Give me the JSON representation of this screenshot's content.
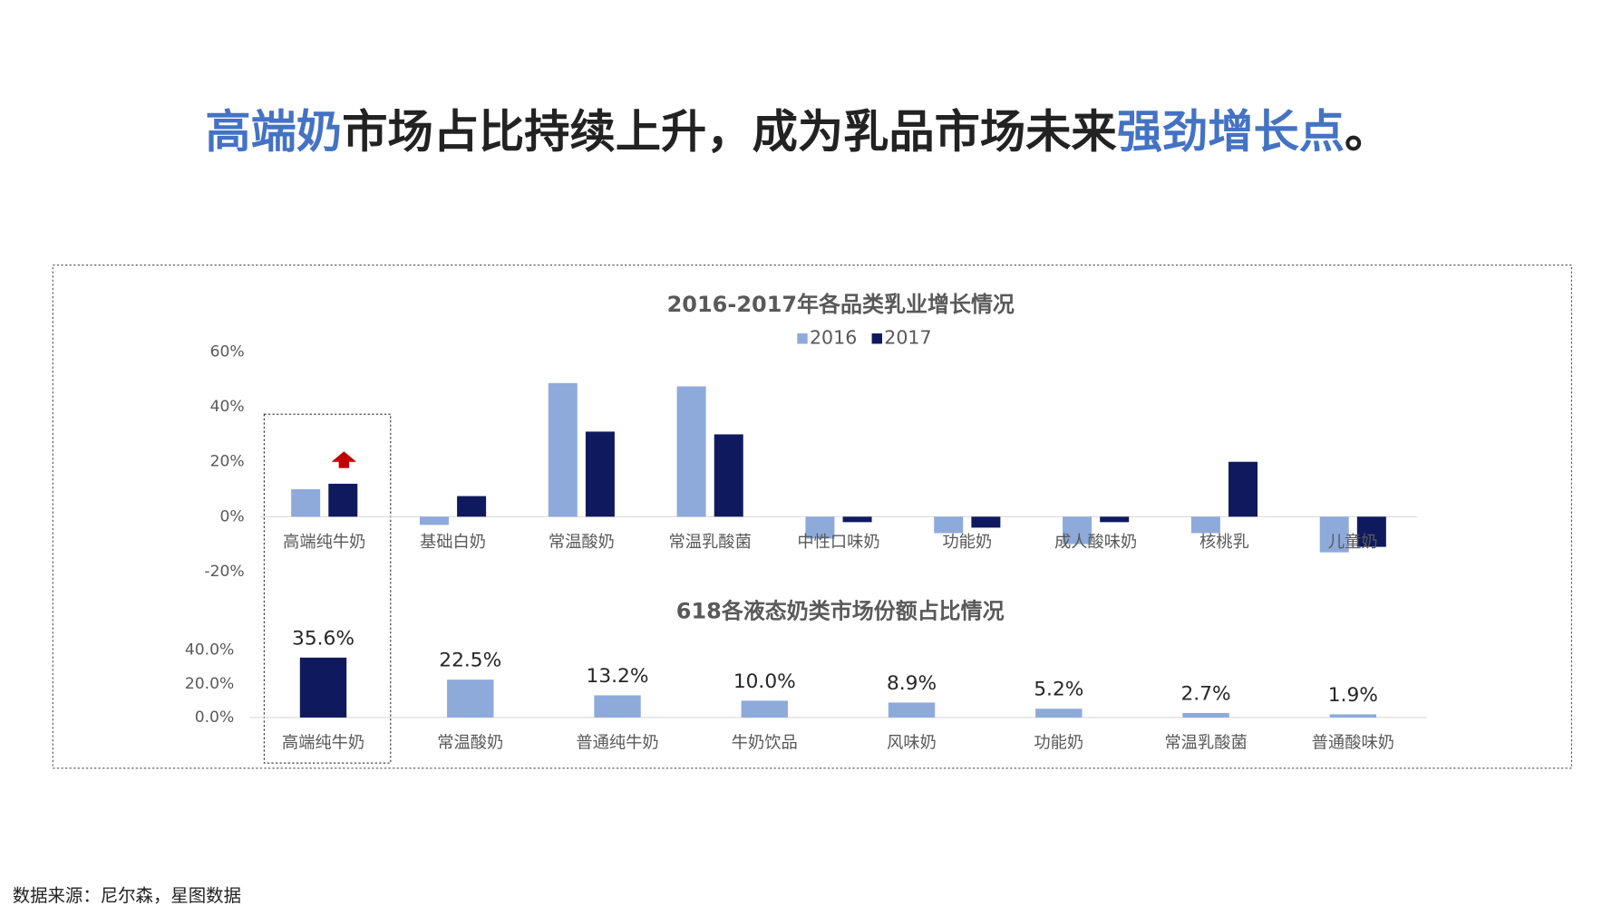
{
  "headline": [
    {
      "text": "高端奶",
      "highlight": true
    },
    {
      "text": "市场占比持续上升，成为乳品市场未来",
      "highlight": false
    },
    {
      "text": "强劲增长点",
      "highlight": true
    },
    {
      "text": "。",
      "highlight": false
    }
  ],
  "highlight_color": "#4472c4",
  "text_color": "#222222",
  "source": "数据来源：尼尔森，星图数据",
  "chart_data": [
    {
      "type": "bar",
      "title": "2016-2017年各品类乳业增长情况",
      "categories": [
        "高端纯牛奶",
        "基础白奶",
        "常温酸奶",
        "常温乳酸菌",
        "中性口味奶",
        "功能奶",
        "成人酸味奶",
        "核桃乳",
        "儿童奶"
      ],
      "series": [
        {
          "name": "2016",
          "color": "#8eaadb",
          "values": [
            10,
            -3,
            48.7,
            47.5,
            -8,
            -6,
            -10,
            -6,
            -13
          ]
        },
        {
          "name": "2017",
          "color": "#0f1a5e",
          "values": [
            12,
            7.5,
            31,
            30,
            -2,
            -4,
            -2,
            20,
            -11
          ]
        }
      ],
      "ylim": [
        -20,
        60
      ],
      "yticks": [
        {
          "value": -20,
          "label": "-20%"
        },
        {
          "value": 0,
          "label": "0%"
        },
        {
          "value": 20,
          "label": "20%"
        },
        {
          "value": 40,
          "label": "40%"
        },
        {
          "value": 60,
          "label": "60%"
        }
      ],
      "legend": "top"
    },
    {
      "type": "bar",
      "title": "618各液态奶类市场份额占比情况",
      "categories": [
        "高端纯牛奶",
        "常温酸奶",
        "普通纯牛奶",
        "牛奶饮品",
        "风味奶",
        "功能奶",
        "常温乳酸菌",
        "普通酸味奶"
      ],
      "values": [
        35.6,
        22.5,
        13.2,
        10.0,
        8.9,
        5.2,
        2.7,
        1.9
      ],
      "value_labels": [
        "35.6%",
        "22.5%",
        "13.2%",
        "10.0%",
        "8.9%",
        "5.2%",
        "2.7%",
        "1.9%"
      ],
      "colors": [
        "#0f1a5e",
        "#8eaadb",
        "#8eaadb",
        "#8eaadb",
        "#8eaadb",
        "#8eaadb",
        "#8eaadb",
        "#8eaadb"
      ],
      "ylim": [
        0,
        40
      ],
      "yticks": [
        {
          "value": 0,
          "label": "0.0%"
        },
        {
          "value": 20,
          "label": "20.0%"
        },
        {
          "value": 40,
          "label": "40.0%"
        }
      ]
    }
  ]
}
